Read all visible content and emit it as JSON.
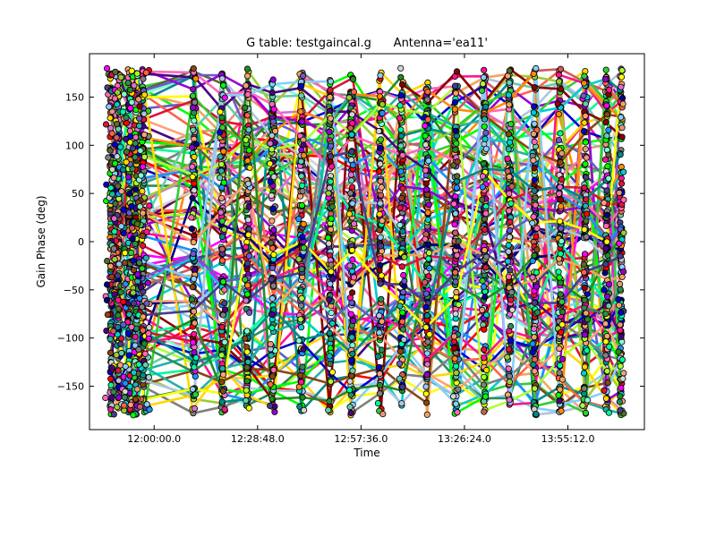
{
  "chart_data": {
    "type": "line",
    "title": "G table: testgaincal.g      Antenna='ea11'",
    "xlabel": "Time",
    "ylabel": "Gain Phase (deg)",
    "ylim": [
      -195,
      195
    ],
    "yticks": [
      -150,
      -100,
      -50,
      0,
      50,
      100,
      150
    ],
    "xticks": [
      "12:00:00.0",
      "12:28:48.0",
      "12:57:36.0",
      "13:26:24.0",
      "13:55:12.0"
    ],
    "xlim": [
      "11:42:00",
      "14:16:30"
    ],
    "grid": false,
    "legend": "none",
    "marker": "circle",
    "scan_times": [
      "11:48:00",
      "11:50:00",
      "11:53:00",
      "11:55:00",
      "11:57:00",
      "12:11:00",
      "12:19:00",
      "12:26:00",
      "12:33:00",
      "12:41:00",
      "12:49:00",
      "12:55:00",
      "13:03:00",
      "13:09:00",
      "13:16:00",
      "13:24:00",
      "13:32:00",
      "13:39:00",
      "13:46:00",
      "13:53:00",
      "14:00:00",
      "14:06:00",
      "14:10:00"
    ],
    "scan_time_seconds": [
      0,
      120,
      300,
      420,
      540,
      1380,
      1860,
      2280,
      2700,
      3180,
      3660,
      4020,
      4500,
      4860,
      5280,
      5760,
      6240,
      6660,
      7080,
      7500,
      7920,
      8280,
      8520
    ],
    "series_count": 110,
    "palette": [
      "#0000cd",
      "#ff00ff",
      "#00ff00",
      "#8b0000",
      "#ff6347",
      "#00ced1",
      "#ff8c00",
      "#9400d3",
      "#32cd32",
      "#1e90ff",
      "#ffd700",
      "#8b4513",
      "#ff1493",
      "#00fa9a",
      "#4b0082",
      "#ffa07a",
      "#2e8b57",
      "#b0c4de",
      "#808080",
      "#ff69b4",
      "#20b2aa",
      "#adff2f",
      "#dc143c",
      "#87cefa",
      "#228b22",
      "#6a5acd",
      "#f4a460",
      "#008b8b",
      "#ffff00",
      "#483d8b",
      "#cd5c5c",
      "#7fffd4",
      "#556b2f",
      "#da70d6",
      "#d3d3d3",
      "#ff0000",
      "#66cdaa",
      "#000080",
      "#e9967a",
      "#9acd32"
    ]
  }
}
